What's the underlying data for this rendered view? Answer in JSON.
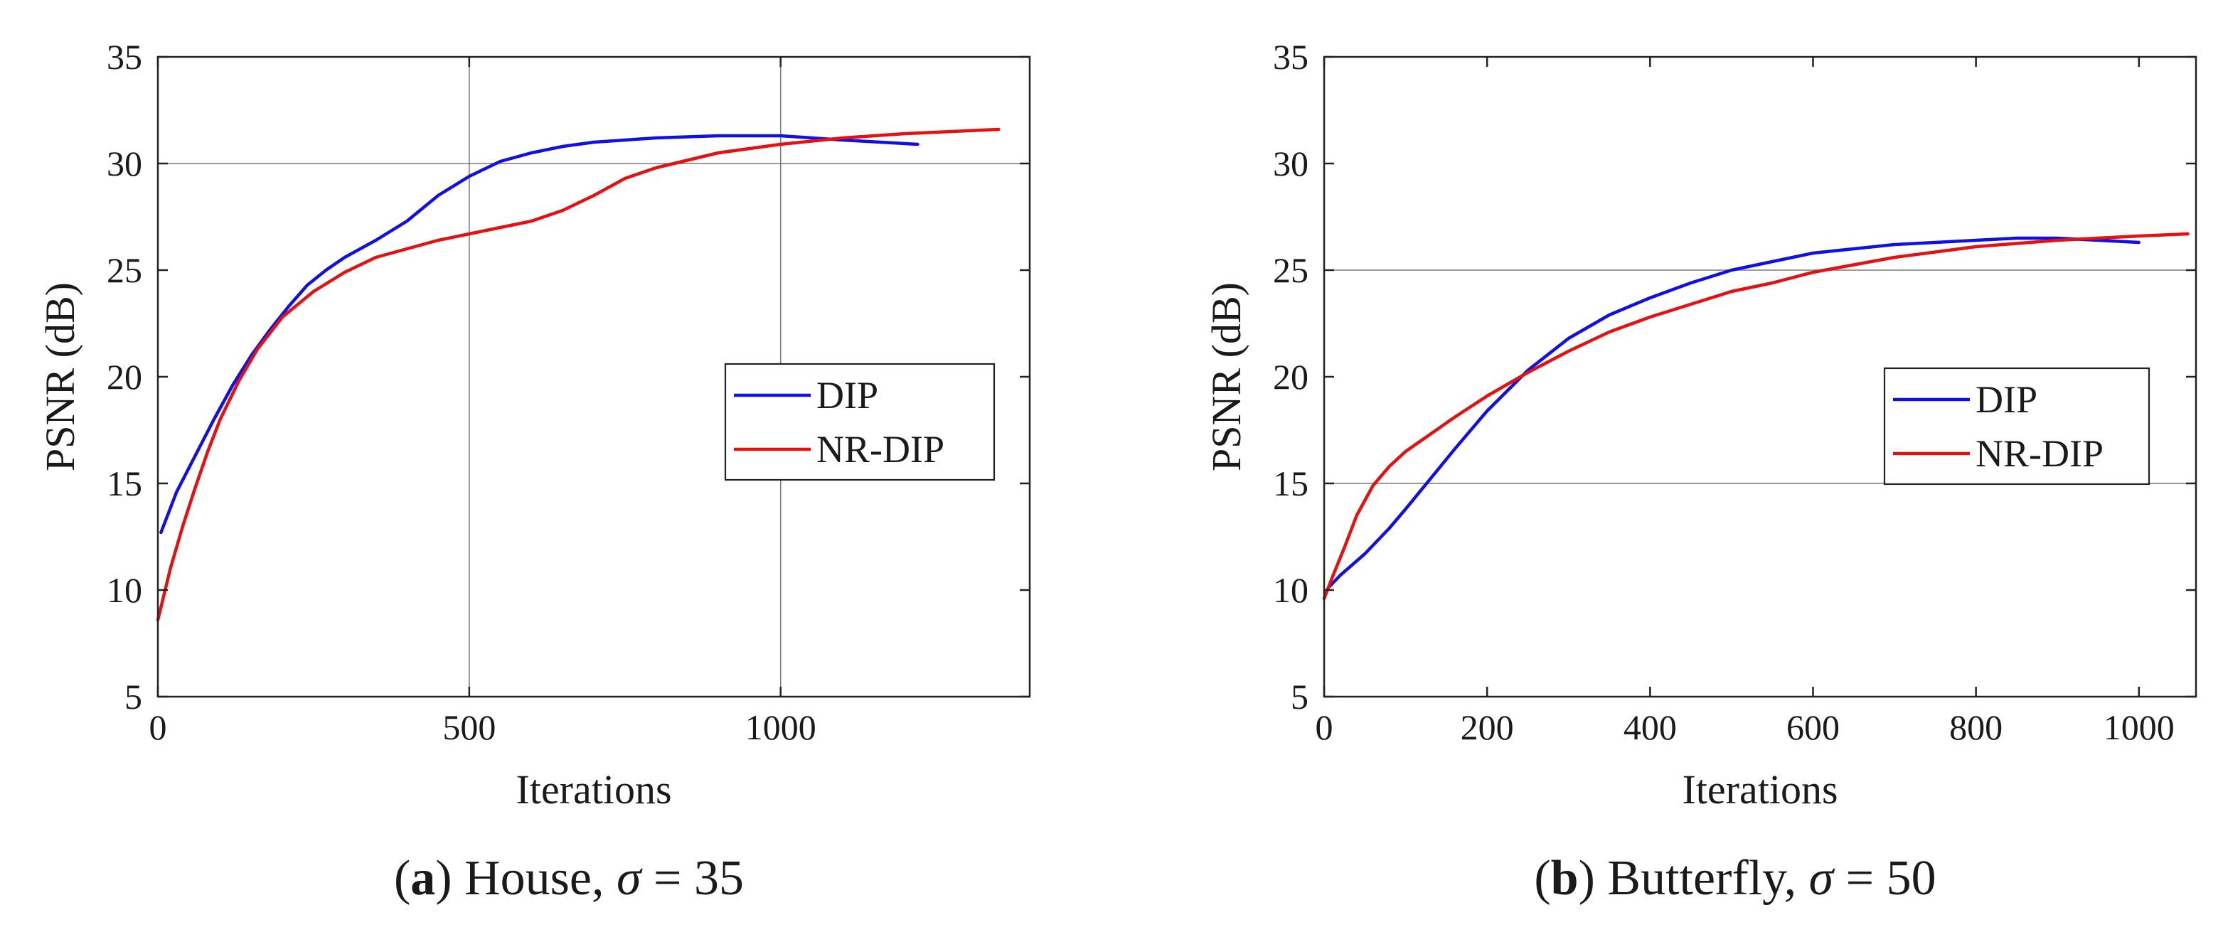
{
  "colors": {
    "dip": "#1010e6",
    "nrdip": "#e61010",
    "axis": "#222222",
    "grid": "#7a7a7a"
  },
  "chart_data": [
    {
      "type": "line",
      "caption": {
        "prefix": "(",
        "letter": "a",
        "suffix": ") House, ",
        "symbol": "σ",
        "rest": " = 35"
      },
      "xlabel": "Iterations",
      "ylabel": "PSNR (dB)",
      "xlim": [
        0,
        1400
      ],
      "ylim": [
        5,
        35
      ],
      "xticks": [
        0,
        500,
        1000
      ],
      "xtick_labels": [
        "0",
        "500",
        "1000"
      ],
      "yticks": [
        5,
        10,
        15,
        20,
        25,
        30,
        35
      ],
      "ytick_labels": [
        "5",
        "10",
        "15",
        "20",
        "25",
        "30",
        "35"
      ],
      "grid_x": [
        500,
        1000
      ],
      "grid_y": [
        30
      ],
      "legend": {
        "position": "right",
        "entries": [
          "DIP",
          "NR-DIP"
        ]
      },
      "series": [
        {
          "name": "DIP",
          "x": [
            5,
            30,
            60,
            90,
            120,
            150,
            180,
            210,
            240,
            270,
            300,
            350,
            400,
            450,
            500,
            550,
            600,
            650,
            700,
            800,
            900,
            1000,
            1100,
            1220
          ],
          "y": [
            12.7,
            14.6,
            16.3,
            18.0,
            19.6,
            21.0,
            22.2,
            23.3,
            24.3,
            25.0,
            25.6,
            26.4,
            27.3,
            28.5,
            29.4,
            30.1,
            30.5,
            30.8,
            31.0,
            31.2,
            31.3,
            31.3,
            31.1,
            30.9
          ]
        },
        {
          "name": "NR-DIP",
          "x": [
            0,
            20,
            40,
            60,
            80,
            100,
            130,
            160,
            200,
            250,
            300,
            350,
            400,
            450,
            500,
            550,
            600,
            650,
            700,
            750,
            800,
            900,
            1000,
            1100,
            1200,
            1350
          ],
          "y": [
            8.6,
            11.0,
            13.0,
            14.8,
            16.5,
            18.0,
            19.8,
            21.3,
            22.8,
            24.0,
            24.9,
            25.6,
            26.0,
            26.4,
            26.7,
            27.0,
            27.3,
            27.8,
            28.5,
            29.3,
            29.8,
            30.5,
            30.9,
            31.2,
            31.4,
            31.6
          ]
        }
      ]
    },
    {
      "type": "line",
      "caption": {
        "prefix": "(",
        "letter": "b",
        "suffix": ") Butterfly, ",
        "symbol": "σ",
        "rest": " = 50"
      },
      "xlabel": "Iterations",
      "ylabel": "PSNR (dB)",
      "xlim": [
        0,
        1070
      ],
      "ylim": [
        5,
        35
      ],
      "xticks": [
        0,
        200,
        400,
        600,
        800,
        1000
      ],
      "xtick_labels": [
        "0",
        "200",
        "400",
        "600",
        "800",
        "1000"
      ],
      "yticks": [
        5,
        10,
        15,
        20,
        25,
        30,
        35
      ],
      "ytick_labels": [
        "5",
        "10",
        "15",
        "20",
        "25",
        "30",
        "35"
      ],
      "grid_x": [],
      "grid_y": [
        15,
        25
      ],
      "legend": {
        "position": "right",
        "entries": [
          "DIP",
          "NR-DIP"
        ]
      },
      "series": [
        {
          "name": "DIP",
          "x": [
            5,
            20,
            50,
            80,
            100,
            130,
            160,
            200,
            250,
            300,
            350,
            400,
            450,
            500,
            550,
            600,
            700,
            800,
            850,
            900,
            950,
            1000
          ],
          "y": [
            10.1,
            10.7,
            11.7,
            12.9,
            13.8,
            15.2,
            16.6,
            18.4,
            20.3,
            21.8,
            22.9,
            23.7,
            24.4,
            25.0,
            25.4,
            25.8,
            26.2,
            26.4,
            26.5,
            26.5,
            26.4,
            26.3
          ]
        },
        {
          "name": "NR-DIP",
          "x": [
            0,
            10,
            25,
            40,
            60,
            80,
            100,
            130,
            160,
            200,
            250,
            300,
            350,
            400,
            450,
            500,
            550,
            600,
            700,
            800,
            900,
            1000,
            1060
          ],
          "y": [
            9.6,
            10.6,
            12.0,
            13.5,
            14.9,
            15.8,
            16.5,
            17.3,
            18.1,
            19.1,
            20.2,
            21.2,
            22.1,
            22.8,
            23.4,
            24.0,
            24.4,
            24.9,
            25.6,
            26.1,
            26.4,
            26.6,
            26.7
          ]
        }
      ]
    }
  ]
}
